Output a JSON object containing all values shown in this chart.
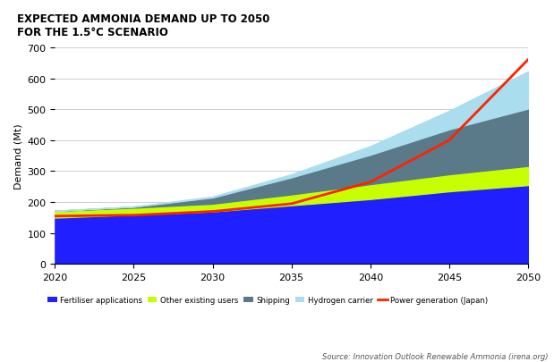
{
  "title_line1": "EXPECTED AMMONIA DEMAND UP TO 2050",
  "title_line2": "FOR THE 1.5°C SCENARIO",
  "ylabel": "Demand (Mt)",
  "source": "Source: Innovation Outlook Renewable Ammonia (irena.org)",
  "years": [
    2020,
    2025,
    2030,
    2035,
    2040,
    2045,
    2050
  ],
  "fertiliser": [
    150,
    160,
    170,
    190,
    210,
    235,
    255
  ],
  "other_users": [
    22,
    22,
    25,
    35,
    48,
    55,
    62
  ],
  "shipping": [
    0,
    3,
    20,
    55,
    95,
    145,
    185
  ],
  "hydrogen": [
    0,
    1,
    3,
    10,
    28,
    60,
    120
  ],
  "power_gen": [
    155,
    158,
    170,
    195,
    265,
    400,
    660
  ],
  "colors": {
    "fertiliser": "#1f1fff",
    "other_users": "#c8ff00",
    "shipping": "#5a7a8a",
    "hydrogen": "#aaddee",
    "power_gen": "#ff2200"
  },
  "ylim": [
    0,
    700
  ],
  "xlim": [
    2020,
    2050
  ],
  "yticks": [
    0,
    100,
    200,
    300,
    400,
    500,
    600,
    700
  ],
  "xticks": [
    2020,
    2025,
    2030,
    2035,
    2040,
    2045,
    2050
  ],
  "legend_labels": [
    "Fertiliser applications",
    "Other existing users",
    "Shipping",
    "Hydrogen carrier",
    "Power generation (Japan)"
  ],
  "background_color": "#ffffff",
  "grid_color": "#d0d0d0"
}
